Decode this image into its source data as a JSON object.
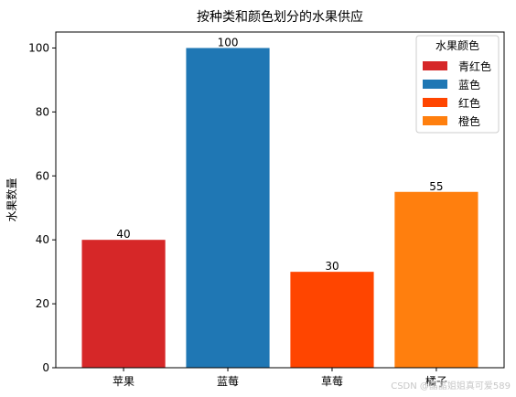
{
  "chart_data": {
    "type": "bar",
    "title": "按种类和颜色划分的水果供应",
    "xlabel": "",
    "ylabel": "水果数量",
    "categories": [
      "苹果",
      "蓝莓",
      "草莓",
      "橘子"
    ],
    "values": [
      40,
      100,
      30,
      55
    ],
    "bar_colors": [
      "#d62728",
      "#1f77b4",
      "#ff4500",
      "#ff7f0e"
    ],
    "bar_labels": [
      "40",
      "100",
      "30",
      "55"
    ],
    "ylim": [
      0,
      105
    ],
    "yticks": [
      0,
      20,
      40,
      60,
      80,
      100
    ],
    "grid": false,
    "legend": {
      "title": "水果颜色",
      "placement": "top-right",
      "entries": [
        {
          "label": "青红色",
          "color": "#d62728"
        },
        {
          "label": "蓝色",
          "color": "#1f77b4"
        },
        {
          "label": "红色",
          "color": "#ff4500"
        },
        {
          "label": "橙色",
          "color": "#ff7f0e"
        }
      ]
    }
  },
  "watermark": "CSDN @晶晶姐姐真可爱589"
}
